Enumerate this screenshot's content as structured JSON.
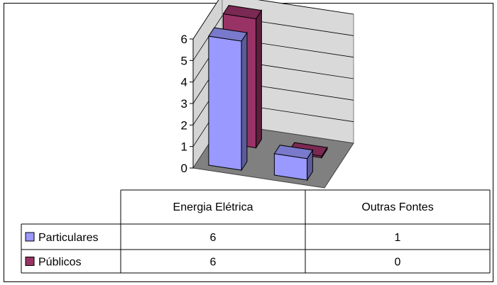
{
  "chart_data": {
    "type": "bar",
    "three_d": true,
    "categories": [
      "Energia Elétrica",
      "Outras Fontes"
    ],
    "series": [
      {
        "name": "Particulares",
        "values": [
          6,
          1
        ],
        "color": "#9999ff"
      },
      {
        "name": "Públicos",
        "values": [
          6,
          0
        ],
        "color": "#993366"
      }
    ],
    "title": "",
    "xlabel": "",
    "ylabel": "",
    "ylim": [
      0,
      6
    ],
    "yticks": [
      0,
      1,
      2,
      3,
      4,
      5,
      6
    ],
    "grid": true,
    "legend": "data table"
  }
}
